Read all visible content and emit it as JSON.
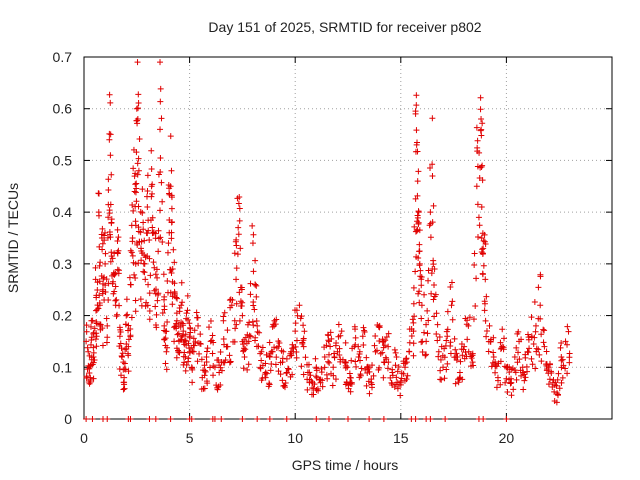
{
  "chart_data": {
    "type": "scatter",
    "title": "Day 151 of 2025, SRMTID for receiver p802",
    "xlabel": "GPS time / hours",
    "ylabel": "SRMTID / TECUs",
    "xlim": [
      0,
      25
    ],
    "ylim": [
      0,
      0.7
    ],
    "xticks": [
      0,
      5,
      10,
      15,
      20
    ],
    "xtick_labels": [
      "0",
      "5",
      "10",
      "15",
      "20"
    ],
    "yticks": [
      0,
      0.1,
      0.2,
      0.3,
      0.4,
      0.5,
      0.6,
      0.7
    ],
    "ytick_labels": [
      "0",
      "0.1",
      "0.2",
      "0.3",
      "0.4",
      "0.5",
      "0.6",
      "0.7"
    ],
    "grid": true,
    "marker": "+",
    "color": "#e00000",
    "series": [
      {
        "name": "SRMTID",
        "points": [
          [
            0.1,
            0.15
          ],
          [
            0.2,
            0.13
          ],
          [
            0.3,
            0.08
          ],
          [
            0.35,
            0.19
          ],
          [
            0.45,
            0.12
          ],
          [
            0.55,
            0.27
          ],
          [
            0.6,
            0.16
          ],
          [
            0.7,
            0.4
          ],
          [
            0.75,
            0.22
          ],
          [
            0.85,
            0.35
          ],
          [
            0.9,
            0.25
          ],
          [
            1.0,
            0.3
          ],
          [
            1.1,
            0.18
          ],
          [
            1.2,
            0.54
          ],
          [
            1.25,
            0.51
          ],
          [
            1.3,
            0.38
          ],
          [
            1.4,
            0.28
          ],
          [
            1.5,
            0.22
          ],
          [
            1.6,
            0.32
          ],
          [
            1.7,
            0.16
          ],
          [
            1.8,
            0.12
          ],
          [
            1.9,
            0.08
          ],
          [
            2.0,
            0.2
          ],
          [
            2.1,
            0.14
          ],
          [
            2.2,
            0.26
          ],
          [
            2.3,
            0.35
          ],
          [
            2.4,
            0.44
          ],
          [
            2.45,
            0.3
          ],
          [
            2.5,
            0.6
          ],
          [
            2.55,
            0.58
          ],
          [
            2.6,
            0.48
          ],
          [
            2.7,
            0.33
          ],
          [
            2.8,
            0.38
          ],
          [
            2.9,
            0.27
          ],
          [
            3.0,
            0.41
          ],
          [
            3.1,
            0.31
          ],
          [
            3.2,
            0.45
          ],
          [
            3.3,
            0.36
          ],
          [
            3.4,
            0.28
          ],
          [
            3.5,
            0.24
          ],
          [
            3.6,
            0.56
          ],
          [
            3.7,
            0.42
          ],
          [
            3.8,
            0.18
          ],
          [
            3.9,
            0.13
          ],
          [
            4.0,
            0.34
          ],
          [
            4.1,
            0.45
          ],
          [
            4.15,
            0.38
          ],
          [
            4.2,
            0.29
          ],
          [
            4.3,
            0.24
          ],
          [
            4.4,
            0.19
          ],
          [
            4.5,
            0.15
          ],
          [
            4.6,
            0.22
          ],
          [
            4.7,
            0.17
          ],
          [
            4.8,
            0.12
          ],
          [
            4.9,
            0.21
          ],
          [
            5.0,
            0.16
          ],
          [
            5.1,
            0.1
          ],
          [
            5.2,
            0.13
          ],
          [
            5.4,
            0.18
          ],
          [
            5.6,
            0.08
          ],
          [
            5.8,
            0.12
          ],
          [
            6.0,
            0.15
          ],
          [
            6.2,
            0.1
          ],
          [
            6.4,
            0.09
          ],
          [
            6.6,
            0.19
          ],
          [
            6.8,
            0.14
          ],
          [
            7.0,
            0.22
          ],
          [
            7.2,
            0.27
          ],
          [
            7.3,
            0.37
          ],
          [
            7.4,
            0.33
          ],
          [
            7.5,
            0.2
          ],
          [
            7.6,
            0.12
          ],
          [
            7.8,
            0.15
          ],
          [
            8.0,
            0.34
          ],
          [
            8.1,
            0.26
          ],
          [
            8.2,
            0.18
          ],
          [
            8.4,
            0.13
          ],
          [
            8.6,
            0.09
          ],
          [
            8.8,
            0.12
          ],
          [
            9.0,
            0.18
          ],
          [
            9.2,
            0.14
          ],
          [
            9.4,
            0.11
          ],
          [
            9.6,
            0.09
          ],
          [
            9.8,
            0.13
          ],
          [
            10.0,
            0.17
          ],
          [
            10.2,
            0.22
          ],
          [
            10.4,
            0.14
          ],
          [
            10.6,
            0.09
          ],
          [
            10.8,
            0.06
          ],
          [
            11.0,
            0.1
          ],
          [
            11.2,
            0.07
          ],
          [
            11.4,
            0.12
          ],
          [
            11.6,
            0.15
          ],
          [
            11.8,
            0.1
          ],
          [
            12.0,
            0.13
          ],
          [
            12.2,
            0.17
          ],
          [
            12.4,
            0.11
          ],
          [
            12.6,
            0.08
          ],
          [
            12.8,
            0.14
          ],
          [
            13.0,
            0.12
          ],
          [
            13.2,
            0.16
          ],
          [
            13.4,
            0.1
          ],
          [
            13.6,
            0.07
          ],
          [
            13.8,
            0.13
          ],
          [
            14.0,
            0.18
          ],
          [
            14.2,
            0.11
          ],
          [
            14.4,
            0.14
          ],
          [
            14.6,
            0.09
          ],
          [
            14.8,
            0.12
          ],
          [
            15.0,
            0.07
          ],
          [
            15.2,
            0.1
          ],
          [
            15.4,
            0.13
          ],
          [
            15.6,
            0.17
          ],
          [
            15.7,
            0.59
          ],
          [
            15.75,
            0.53
          ],
          [
            15.8,
            0.46
          ],
          [
            15.85,
            0.4
          ],
          [
            15.9,
            0.3
          ],
          [
            16.0,
            0.22
          ],
          [
            16.2,
            0.15
          ],
          [
            16.4,
            0.4
          ],
          [
            16.5,
            0.47
          ],
          [
            16.6,
            0.29
          ],
          [
            16.8,
            0.13
          ],
          [
            17.0,
            0.1
          ],
          [
            17.2,
            0.16
          ],
          [
            17.4,
            0.22
          ],
          [
            17.6,
            0.12
          ],
          [
            17.8,
            0.09
          ],
          [
            18.0,
            0.14
          ],
          [
            18.2,
            0.18
          ],
          [
            18.4,
            0.11
          ],
          [
            18.6,
            0.45
          ],
          [
            18.7,
            0.39
          ],
          [
            18.8,
            0.58
          ],
          [
            18.85,
            0.49
          ],
          [
            18.9,
            0.33
          ],
          [
            19.0,
            0.27
          ],
          [
            19.2,
            0.18
          ],
          [
            19.4,
            0.12
          ],
          [
            19.6,
            0.08
          ],
          [
            19.8,
            0.14
          ],
          [
            20.0,
            0.1
          ],
          [
            20.2,
            0.07
          ],
          [
            20.4,
            0.12
          ],
          [
            20.6,
            0.15
          ],
          [
            20.8,
            0.09
          ],
          [
            21.0,
            0.13
          ],
          [
            21.2,
            0.16
          ],
          [
            21.4,
            0.18
          ],
          [
            21.6,
            0.22
          ],
          [
            21.8,
            0.14
          ],
          [
            22.0,
            0.1
          ],
          [
            22.2,
            0.07
          ],
          [
            22.4,
            0.05
          ],
          [
            22.6,
            0.12
          ],
          [
            22.8,
            0.15
          ]
        ]
      }
    ],
    "zero_points_x": [
      0.1,
      0.4,
      0.9,
      1.1,
      2.1,
      2.2,
      3.1,
      3.4,
      4.1,
      5.0,
      5.1,
      6.1,
      6.2,
      6.5,
      7.5,
      8.2,
      8.8,
      9.6,
      11.0,
      11.6,
      12.5,
      13.5,
      14.2,
      15.5,
      15.7,
      16.2,
      16.4,
      17.1,
      18.7,
      18.9,
      20.0
    ]
  }
}
